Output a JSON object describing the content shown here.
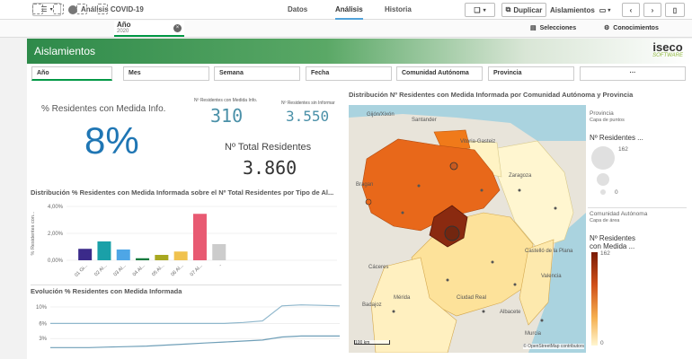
{
  "topbar": {
    "app_title": "Análisis COVID-19",
    "tabs": [
      "Datos",
      "Análisis",
      "Historia"
    ],
    "duplicate_label": "Duplicar",
    "sheet_label": "Aislamientos"
  },
  "selections": {
    "chip_title": "Año",
    "chip_value": "2020",
    "selecciones_label": "Selecciones",
    "conocimientos_label": "Conocimientos"
  },
  "header": {
    "title": "Aislamientos",
    "logo_main": "iseco",
    "logo_sub": "SOFTWARE"
  },
  "filters": [
    "Año",
    "Mes",
    "Semana",
    "Fecha",
    "Comunidad Autónoma",
    "Provincia",
    "···"
  ],
  "kpis": {
    "pct_title": "% Residentes con Medida Info.",
    "pct_value": "8%",
    "con_medida_label": "Nº Residentes con Medida Info.",
    "con_medida_value": "310",
    "sin_informar_label": "Nº Residentes sin Informar",
    "sin_informar_value": "3.550",
    "total_label": "Nº Total Residentes",
    "total_value": "3.860"
  },
  "bar_section": {
    "title": "Distribución % Residentes con Medida Informada sobre el Nº Total Residentes por Tipo de Al...",
    "ylabel": "% Residentes con..."
  },
  "line_section": {
    "title": "Evolución % Residentes con Medida Informada"
  },
  "map_section": {
    "title": "Distribución Nº Residentes con Medida Informada por Comunidad Autónoma y Provincia",
    "places": [
      "Gijón/Xixón",
      "Santander",
      "Vitoria-Gasteiz",
      "Bragan",
      "Zaragoza",
      "Cáceres",
      "Castelló de la Plana",
      "Badajoz",
      "Murcia",
      "Mérida",
      "Albacete",
      "Ciudad Real",
      "Valencia"
    ],
    "scale_label": "100 km",
    "attribution": "© OpenStreetMap contributors"
  },
  "legend": {
    "provincia_title": "Provincia",
    "provincia_sub": "Capa de puntos",
    "provincia_measure": "Nº Residentes ...",
    "bubble_max": "162",
    "bubble_min": "0",
    "ccaa_title": "Comunidad Autónoma",
    "ccaa_sub": "Capa de área",
    "ccaa_measure_1": "Nº Residentes",
    "ccaa_measure_2": "con Medida ...",
    "color_max": "162",
    "color_min": "0"
  },
  "chart_data": [
    {
      "type": "bar",
      "title": "Distribución % Residentes con Medida Informada sobre el Nº Total Residentes por Tipo de Al...",
      "ylabel": "% Residentes con...",
      "categories": [
        "01 Gi...",
        "02 Al...",
        "03 Al...",
        "04 Al...",
        "05 Al...",
        "06 Al...",
        "07 Al...",
        "-"
      ],
      "values": [
        0.85,
        1.4,
        0.8,
        0.15,
        0.4,
        0.65,
        3.45,
        1.2
      ],
      "colors": [
        "#3b2a8a",
        "#1aa0a8",
        "#4ea6e6",
        "#117a3e",
        "#a8a820",
        "#f0c24f",
        "#e85a72",
        "#cccccc"
      ],
      "yticks": [
        "0,00%",
        "2,00%",
        "4,00%"
      ],
      "ylim": [
        0,
        4
      ]
    },
    {
      "type": "line",
      "title": "Evolución % Residentes con Medida Informada",
      "yticks": [
        "10%",
        "6%",
        "3%"
      ],
      "ylim": [
        3,
        10
      ],
      "series": [
        {
          "values": [
            6.0,
            6.0,
            6.0,
            6.0,
            6.0,
            6.0,
            6.0,
            6.0,
            6.0,
            6.0,
            6.2,
            6.5,
            9.5,
            9.7,
            9.6,
            9.5
          ]
        },
        {
          "values": [
            1.2,
            1.2,
            1.2,
            1.3,
            1.4,
            1.5,
            1.7,
            1.9,
            2.1,
            2.3,
            2.5,
            2.7,
            3.3,
            3.5,
            3.5,
            3.5
          ]
        }
      ]
    }
  ]
}
